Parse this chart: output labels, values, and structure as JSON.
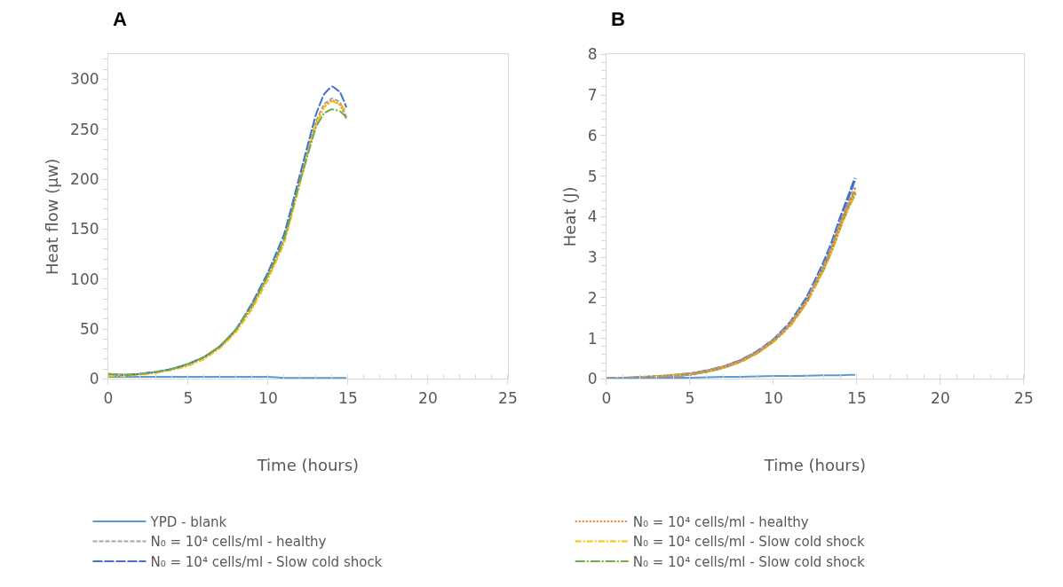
{
  "chart_data": [
    {
      "type": "line",
      "title": "A",
      "xlabel": "Time (hours)",
      "ylabel": "Heat flow (µw)",
      "legend": "bottom",
      "x": [
        0,
        1,
        2,
        3,
        4,
        5,
        6,
        7,
        8,
        9,
        10,
        11,
        12,
        13,
        13.5,
        14,
        14.5,
        14.9
      ],
      "xlim": [
        0,
        25
      ],
      "xticks": [
        0,
        5,
        10,
        15,
        20,
        25
      ],
      "ylim": [
        0,
        325
      ],
      "yticks": [
        0,
        50,
        100,
        150,
        200,
        250,
        300
      ],
      "series": [
        {
          "name": "YPD - blank",
          "color": "#5b9bd5",
          "line_style": "solid",
          "values": [
            2,
            2,
            2,
            2,
            2,
            2,
            2,
            2,
            2,
            2,
            2,
            1,
            1,
            1,
            1,
            1,
            1,
            1
          ]
        },
        {
          "name": "N₀ = 10⁴ cells/ml - healthy",
          "color": "#ed7d31",
          "line_style": "dotted",
          "values": [
            4,
            4,
            5,
            7,
            10,
            14,
            21,
            32,
            48,
            72,
            102,
            138,
            198,
            255,
            272,
            279,
            274,
            260
          ]
        },
        {
          "name": "N₀ = 10⁴ cells/ml - healthy",
          "color": "#a5a5a5",
          "line_style": "dashed",
          "values": [
            5,
            4,
            5,
            7,
            10,
            15,
            22,
            33,
            49,
            74,
            104,
            140,
            200,
            258,
            275,
            281,
            277,
            262
          ]
        },
        {
          "name": "N₀ = 10⁴ cells/ml - Slow cold shock",
          "color": "#ffc000",
          "line_style": "dashdot",
          "values": [
            3,
            3,
            4,
            6,
            9,
            13,
            20,
            31,
            47,
            70,
            100,
            136,
            196,
            255,
            272,
            278,
            275,
            268
          ]
        },
        {
          "name": "N₀ = 10⁴ cells/ml - Slow cold shock",
          "color": "#4472c4",
          "line_style": "longdash",
          "values": [
            5,
            4,
            5,
            7,
            10,
            15,
            22,
            33,
            50,
            76,
            107,
            145,
            205,
            265,
            285,
            293,
            287,
            272
          ]
        },
        {
          "name": "N₀ = 10⁴ cells/ml - Slow cold shock",
          "color": "#70ad47",
          "line_style": "longdashdot",
          "values": [
            5,
            4,
            5,
            7,
            10,
            15,
            22,
            33,
            50,
            74,
            104,
            140,
            198,
            252,
            266,
            270,
            268,
            262
          ]
        }
      ]
    },
    {
      "type": "line",
      "title": "B",
      "xlabel": "Time (hours)",
      "ylabel": "Heat (J)",
      "x": [
        0,
        1,
        2,
        3,
        4,
        5,
        6,
        7,
        8,
        9,
        10,
        11,
        12,
        13,
        13.5,
        14,
        14.5,
        14.9
      ],
      "xlim": [
        0,
        25
      ],
      "xticks": [
        0,
        5,
        10,
        15,
        20,
        25
      ],
      "ylim": [
        0,
        8
      ],
      "yticks": [
        0,
        1,
        2,
        3,
        4,
        5,
        6,
        7,
        8
      ],
      "series": [
        {
          "color": "#5b9bd5",
          "line_style": "solid",
          "values": [
            0,
            0.01,
            0.01,
            0.02,
            0.03,
            0.03,
            0.04,
            0.05,
            0.05,
            0.06,
            0.07,
            0.07,
            0.08,
            0.09,
            0.09,
            0.09,
            0.1,
            0.1
          ]
        },
        {
          "color": "#ed7d31",
          "line_style": "dotted",
          "values": [
            0,
            0.01,
            0.03,
            0.05,
            0.08,
            0.12,
            0.19,
            0.29,
            0.43,
            0.64,
            0.93,
            1.33,
            1.92,
            2.73,
            3.2,
            3.78,
            4.28,
            4.65
          ]
        },
        {
          "color": "#a5a5a5",
          "line_style": "dashed",
          "values": [
            0,
            0.01,
            0.03,
            0.05,
            0.08,
            0.12,
            0.19,
            0.29,
            0.44,
            0.65,
            0.95,
            1.36,
            1.95,
            2.78,
            3.27,
            3.85,
            4.35,
            4.72
          ]
        },
        {
          "color": "#ffc000",
          "line_style": "dashdot",
          "values": [
            0,
            0.01,
            0.03,
            0.05,
            0.08,
            0.12,
            0.18,
            0.28,
            0.42,
            0.63,
            0.92,
            1.31,
            1.9,
            2.7,
            3.17,
            3.75,
            4.25,
            4.62
          ]
        },
        {
          "color": "#4472c4",
          "line_style": "longdash",
          "values": [
            0,
            0.01,
            0.03,
            0.05,
            0.08,
            0.12,
            0.19,
            0.29,
            0.44,
            0.66,
            0.96,
            1.38,
            2.0,
            2.85,
            3.35,
            3.95,
            4.5,
            4.95
          ]
        },
        {
          "color": "#70ad47",
          "line_style": "longdashdot",
          "values": [
            0,
            0.01,
            0.03,
            0.05,
            0.08,
            0.12,
            0.19,
            0.29,
            0.44,
            0.65,
            0.94,
            1.34,
            1.92,
            2.72,
            3.2,
            3.76,
            4.26,
            4.58
          ]
        }
      ]
    }
  ]
}
